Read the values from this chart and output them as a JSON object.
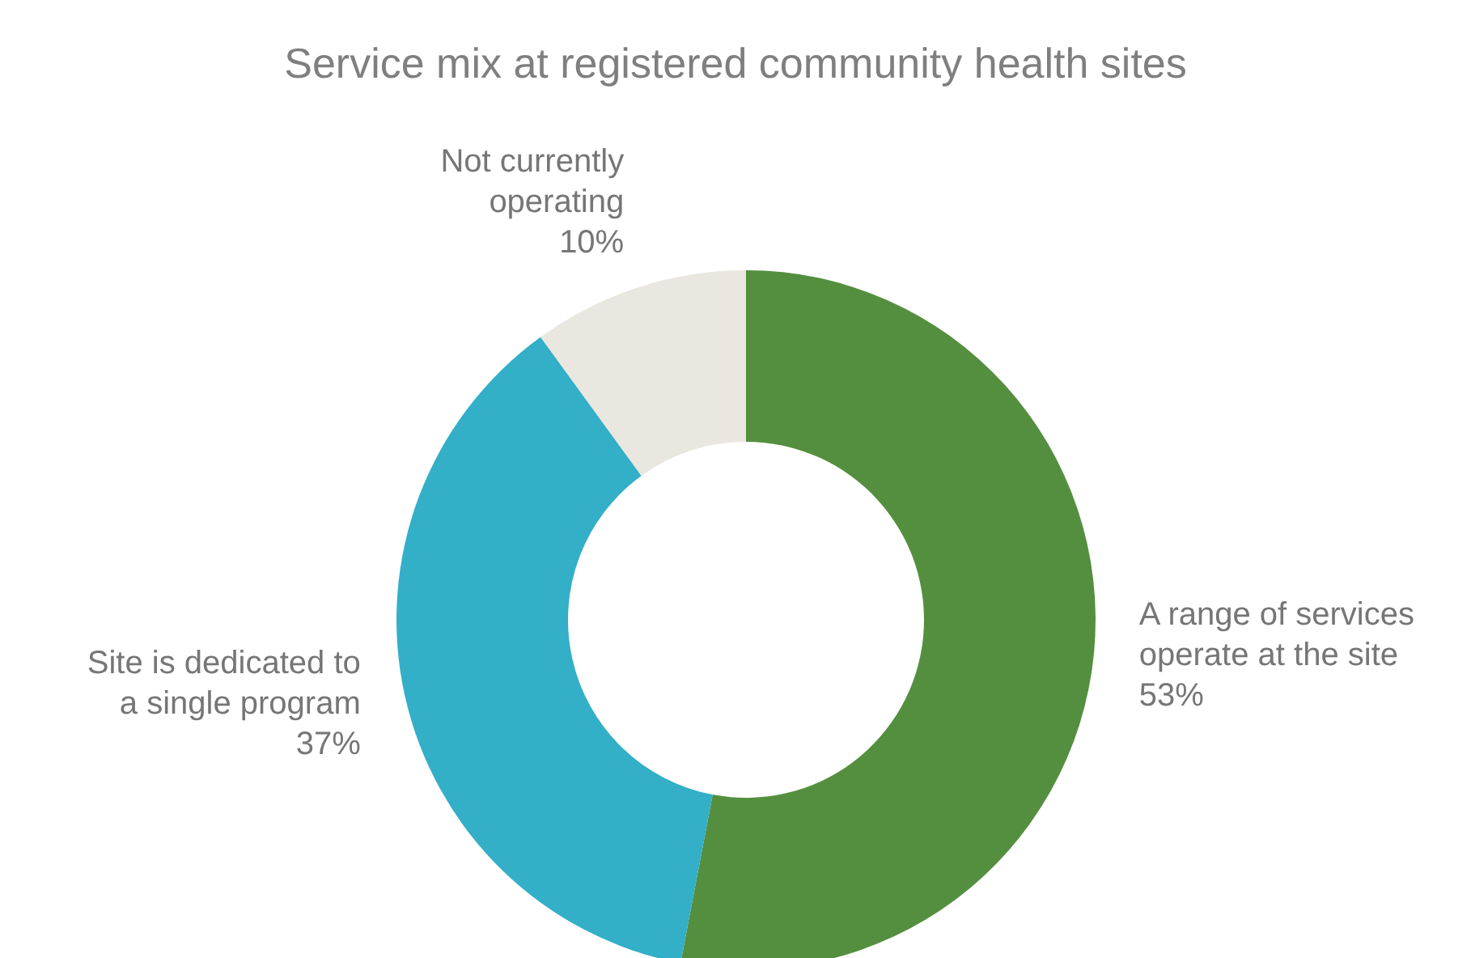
{
  "chart_data": {
    "type": "donut",
    "title": "Service mix at registered community health sites",
    "categories": [
      "A range of services operate at the site",
      "Site is dedicated to a single program",
      "Not currently operating"
    ],
    "values": [
      53,
      37,
      10
    ],
    "value_labels": [
      "53%",
      "37%",
      "10%"
    ],
    "colors": [
      "#548f3f",
      "#33afc8",
      "#e9e7df"
    ],
    "legend": false
  }
}
